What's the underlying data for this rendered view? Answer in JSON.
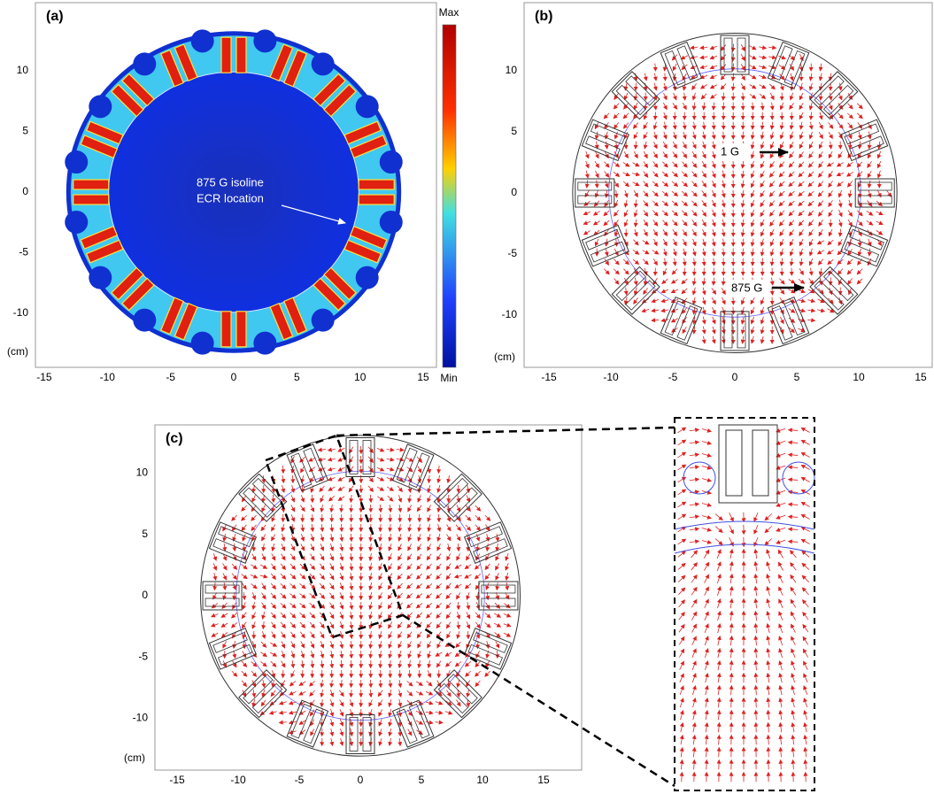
{
  "panels": [
    {
      "label": "(a)",
      "unit": "(cm)",
      "xticks": [
        -15,
        -10,
        -5,
        0,
        5,
        10,
        15
      ],
      "yticks": [
        10,
        5,
        0,
        -5,
        -10
      ],
      "colorbar": {
        "max": "Max",
        "min": "Min"
      },
      "annotations": [
        "875 G isoline",
        "ECR location"
      ]
    },
    {
      "label": "(b)",
      "unit": "(cm)",
      "xticks": [
        -15,
        -10,
        -5,
        0,
        5,
        10,
        15
      ],
      "yticks": [
        10,
        5,
        0,
        -5,
        -10
      ],
      "annotations": [
        "1 G",
        "875 G"
      ]
    },
    {
      "label": "(c)",
      "unit": "(cm)",
      "xticks": [
        -15,
        -10,
        -5,
        0,
        5,
        10,
        15
      ],
      "yticks": [
        10,
        5,
        0,
        -5,
        -10
      ]
    }
  ]
}
